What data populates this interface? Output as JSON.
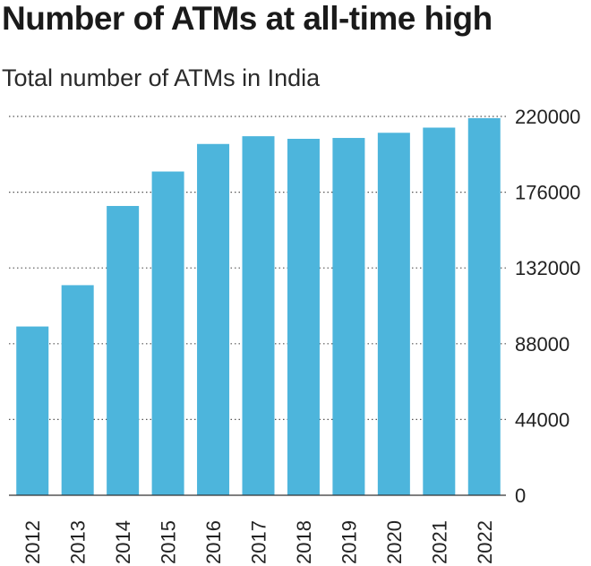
{
  "title": "Number of ATMs at all-time high",
  "subtitle": "Total number of ATMs in India",
  "chart_data": {
    "type": "bar",
    "title": "Number of ATMs at all-time high",
    "subtitle": "Total number of ATMs in India",
    "xlabel": "",
    "ylabel": "",
    "categories": [
      "2012",
      "2013",
      "2014",
      "2015",
      "2016",
      "2017",
      "2018",
      "2019",
      "2020",
      "2021",
      "2022"
    ],
    "values": [
      98000,
      122000,
      168000,
      188000,
      204000,
      208500,
      207000,
      207500,
      210500,
      213500,
      219000
    ],
    "ylim": [
      0,
      220000
    ],
    "yticks": [
      "0",
      "44000",
      "88000",
      "132000",
      "176000",
      "220000"
    ],
    "y_axis_side": "right",
    "grid": "horizontal dotted",
    "bar_color": "#4db5dc",
    "grid_color": "#555555"
  }
}
